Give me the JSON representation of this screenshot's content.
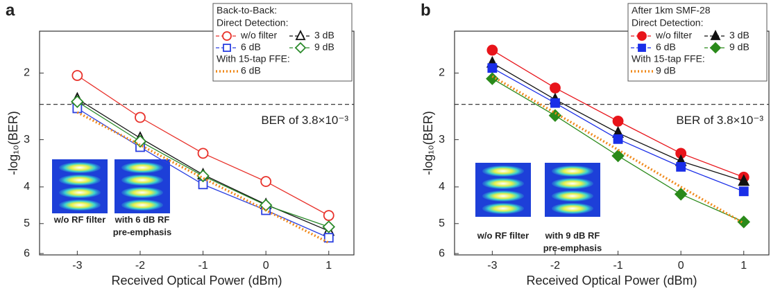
{
  "chart_data": [
    {
      "type": "line",
      "panel_label": "a",
      "xlabel": "Received Optical Power (dBm)",
      "ylabel": "-log₁₀(BER)",
      "log_scale": true,
      "y_reversed": true,
      "filled_markers": false,
      "xlim": [
        -3.6,
        1.4
      ],
      "xticks": [
        -3,
        -2,
        -1,
        0,
        1
      ],
      "ylim": [
        1.55,
        6.05
      ],
      "yticks": [
        2,
        3,
        4,
        5,
        6
      ],
      "legend_title": "Back-to-Back:",
      "legend_subtitle": "Direct Detection:",
      "ffe_heading": "With 15-tap FFE:",
      "reference_line": {
        "value": 2.42,
        "label": "BER of 3.8×10⁻³"
      },
      "x": [
        -3,
        -2,
        -1,
        0,
        1
      ],
      "series": [
        {
          "name": "w/o filter",
          "color": "#e8312a",
          "marker": "circle",
          "values": [
            2.03,
            2.62,
            3.26,
            3.87,
            4.76
          ]
        },
        {
          "name": "3 dB",
          "color": "#111111",
          "marker": "triangle",
          "values": [
            2.34,
            2.97,
            3.71,
            4.45,
            5.23
          ]
        },
        {
          "name": "6 dB",
          "color": "#2a3fe0",
          "marker": "square",
          "values": [
            2.48,
            3.14,
            3.94,
            4.61,
            5.45
          ]
        },
        {
          "name": "9 dB",
          "color": "#2a8a2a",
          "marker": "diamond",
          "values": [
            2.38,
            3.03,
            3.74,
            4.47,
            5.1
          ]
        },
        {
          "name": "6 dB",
          "color": "#f08a1c",
          "marker": "none",
          "line_style": "dotted",
          "values": [
            2.54,
            3.1,
            3.79,
            4.61,
            5.62
          ]
        }
      ],
      "insets": [
        {
          "caption": [
            "w/o RF filter"
          ]
        },
        {
          "caption": [
            "with 6 dB RF",
            "pre-emphasis"
          ]
        }
      ]
    },
    {
      "type": "line",
      "panel_label": "b",
      "xlabel": "Received Optical Power (dBm)",
      "ylabel": "-log₁₀(BER)",
      "log_scale": true,
      "y_reversed": true,
      "filled_markers": true,
      "xlim": [
        -3.6,
        1.4
      ],
      "xticks": [
        -3,
        -2,
        -1,
        0,
        1
      ],
      "ylim": [
        1.55,
        6.05
      ],
      "yticks": [
        2,
        3,
        4,
        5,
        6
      ],
      "legend_title": "After 1km SMF-28",
      "legend_subtitle": "Direct Detection:",
      "ffe_heading": "With 15-tap FFE:",
      "reference_line": {
        "value": 2.42,
        "label": "BER of 3.8×10⁻³"
      },
      "x": [
        -3,
        -2,
        -1,
        0,
        1
      ],
      "series": [
        {
          "name": "w/o filter",
          "color": "#e8141a",
          "marker": "circle",
          "values": [
            1.74,
            2.19,
            2.68,
            3.26,
            3.77
          ]
        },
        {
          "name": "3 dB",
          "color": "#111111",
          "marker": "triangle",
          "values": [
            1.88,
            2.35,
            2.88,
            3.42,
            3.86
          ]
        },
        {
          "name": "6 dB",
          "color": "#1a2ee8",
          "marker": "square",
          "values": [
            1.94,
            2.4,
            2.99,
            3.54,
            4.11
          ]
        },
        {
          "name": "9 dB",
          "color": "#2a8a1a",
          "marker": "diamond",
          "values": [
            2.07,
            2.59,
            3.31,
            4.18,
            4.95
          ]
        },
        {
          "name": "9 dB",
          "color": "#f08a1c",
          "marker": "none",
          "line_style": "dotted",
          "values": [
            2.04,
            2.55,
            3.19,
            4.0,
            4.99
          ]
        }
      ],
      "insets": [
        {
          "caption": [
            "w/o RF filter"
          ]
        },
        {
          "caption": [
            "with 9 dB RF",
            "pre-emphasis"
          ]
        }
      ]
    }
  ]
}
